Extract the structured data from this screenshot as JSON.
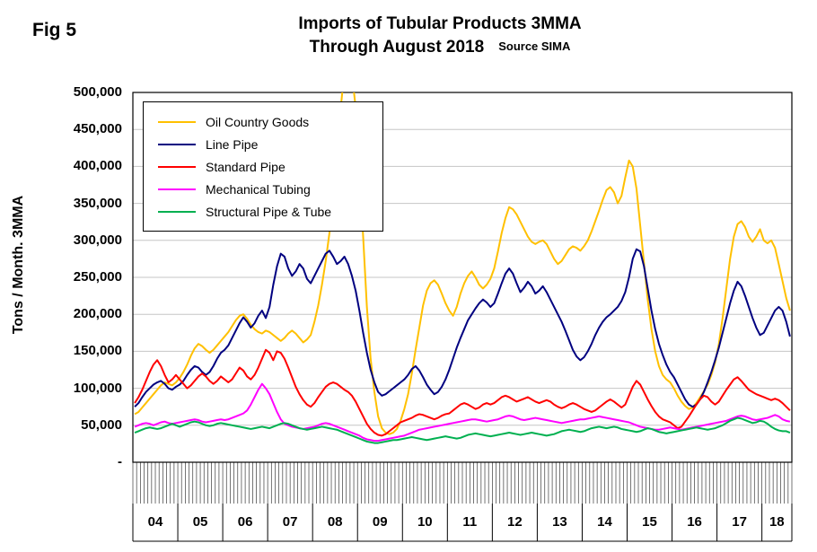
{
  "chart_data": {
    "type": "line",
    "fig_label": "Fig 5",
    "title": "Imports of Tubular Products 3MMA",
    "subtitle": "Through August 2018",
    "source": "Source SIMA",
    "ylabel": "Tons / Month. 3MMA",
    "ylim": [
      0,
      500000
    ],
    "ytick_interval": 50000,
    "ytick_labels": [
      "-",
      "50,000",
      "100,000",
      "150,000",
      "200,000",
      "250,000",
      "300,000",
      "350,000",
      "400,000",
      "450,000",
      "500,000"
    ],
    "grid": "horizontal",
    "legend_position": "top-left-inside",
    "x_years": [
      "04",
      "05",
      "06",
      "07",
      "08",
      "09",
      "10",
      "11",
      "12",
      "13",
      "14",
      "15",
      "16",
      "17",
      "18"
    ],
    "months_per_year": [
      12,
      12,
      12,
      12,
      12,
      12,
      12,
      12,
      12,
      12,
      12,
      12,
      12,
      12,
      8
    ],
    "series": [
      {
        "name": "Oil Country Goods",
        "color": "#FFC000",
        "values": [
          65000,
          68000,
          74000,
          80000,
          86000,
          92000,
          98000,
          104000,
          108000,
          106000,
          104000,
          108000,
          114000,
          122000,
          132000,
          144000,
          154000,
          160000,
          157000,
          152000,
          148000,
          152000,
          158000,
          164000,
          170000,
          176000,
          184000,
          192000,
          198000,
          200000,
          194000,
          186000,
          180000,
          176000,
          174000,
          178000,
          176000,
          172000,
          168000,
          164000,
          168000,
          174000,
          178000,
          174000,
          168000,
          162000,
          166000,
          172000,
          190000,
          212000,
          240000,
          272000,
          310000,
          356000,
          415000,
          478000,
          530000,
          545000,
          525000,
          480000,
          400000,
          305000,
          210000,
          140000,
          95000,
          62000,
          46000,
          40000,
          38000,
          40000,
          45000,
          56000,
          72000,
          92000,
          120000,
          152000,
          182000,
          212000,
          232000,
          242000,
          246000,
          240000,
          228000,
          215000,
          205000,
          198000,
          210000,
          228000,
          242000,
          252000,
          258000,
          250000,
          240000,
          235000,
          240000,
          248000,
          262000,
          285000,
          310000,
          330000,
          345000,
          342000,
          335000,
          325000,
          315000,
          305000,
          298000,
          295000,
          298000,
          300000,
          295000,
          285000,
          275000,
          268000,
          272000,
          280000,
          288000,
          292000,
          290000,
          286000,
          292000,
          300000,
          312000,
          326000,
          340000,
          355000,
          368000,
          372000,
          365000,
          350000,
          360000,
          385000,
          408000,
          400000,
          370000,
          320000,
          270000,
          220000,
          180000,
          150000,
          130000,
          118000,
          112000,
          108000,
          100000,
          90000,
          82000,
          76000,
          72000,
          74000,
          80000,
          88000,
          96000,
          105000,
          118000,
          135000,
          160000,
          195000,
          235000,
          275000,
          305000,
          322000,
          326000,
          318000,
          305000,
          298000,
          305000,
          315000,
          300000,
          296000,
          300000,
          290000,
          268000,
          245000,
          222000,
          205000
        ]
      },
      {
        "name": "Line Pipe",
        "color": "#000080",
        "values": [
          75000,
          80000,
          88000,
          95000,
          100000,
          105000,
          108000,
          110000,
          106000,
          100000,
          98000,
          102000,
          105000,
          110000,
          118000,
          125000,
          130000,
          128000,
          122000,
          118000,
          122000,
          130000,
          140000,
          148000,
          152000,
          158000,
          168000,
          178000,
          188000,
          196000,
          190000,
          182000,
          188000,
          198000,
          205000,
          195000,
          210000,
          240000,
          265000,
          282000,
          278000,
          262000,
          252000,
          258000,
          268000,
          262000,
          248000,
          242000,
          252000,
          262000,
          272000,
          282000,
          286000,
          278000,
          268000,
          272000,
          278000,
          268000,
          252000,
          232000,
          205000,
          175000,
          148000,
          125000,
          108000,
          95000,
          90000,
          92000,
          96000,
          100000,
          104000,
          108000,
          112000,
          118000,
          126000,
          130000,
          124000,
          115000,
          105000,
          98000,
          92000,
          95000,
          102000,
          112000,
          125000,
          140000,
          155000,
          168000,
          180000,
          192000,
          200000,
          208000,
          215000,
          220000,
          216000,
          210000,
          215000,
          228000,
          242000,
          255000,
          262000,
          255000,
          242000,
          230000,
          236000,
          244000,
          238000,
          228000,
          232000,
          238000,
          230000,
          220000,
          210000,
          200000,
          190000,
          178000,
          165000,
          152000,
          143000,
          138000,
          142000,
          150000,
          160000,
          172000,
          182000,
          190000,
          196000,
          200000,
          205000,
          210000,
          218000,
          230000,
          250000,
          275000,
          288000,
          285000,
          265000,
          235000,
          205000,
          180000,
          160000,
          145000,
          132000,
          122000,
          115000,
          105000,
          95000,
          85000,
          78000,
          75000,
          78000,
          85000,
          95000,
          108000,
          122000,
          138000,
          155000,
          175000,
          195000,
          215000,
          232000,
          244000,
          238000,
          225000,
          210000,
          195000,
          182000,
          172000,
          175000,
          185000,
          195000,
          205000,
          210000,
          205000,
          190000,
          170000
        ]
      },
      {
        "name": "Standard Pipe",
        "color": "#FF0000",
        "values": [
          80000,
          88000,
          98000,
          110000,
          122000,
          132000,
          138000,
          130000,
          118000,
          108000,
          112000,
          118000,
          112000,
          106000,
          100000,
          104000,
          110000,
          116000,
          120000,
          116000,
          110000,
          106000,
          110000,
          116000,
          112000,
          108000,
          112000,
          120000,
          128000,
          124000,
          116000,
          112000,
          118000,
          128000,
          140000,
          152000,
          148000,
          138000,
          150000,
          148000,
          140000,
          128000,
          115000,
          102000,
          92000,
          84000,
          78000,
          75000,
          80000,
          88000,
          95000,
          102000,
          106000,
          108000,
          106000,
          102000,
          98000,
          95000,
          90000,
          82000,
          72000,
          62000,
          52000,
          45000,
          40000,
          37000,
          36000,
          38000,
          42000,
          46000,
          50000,
          54000,
          56000,
          58000,
          60000,
          63000,
          65000,
          64000,
          62000,
          60000,
          58000,
          60000,
          63000,
          65000,
          66000,
          70000,
          74000,
          78000,
          80000,
          78000,
          75000,
          72000,
          74000,
          78000,
          80000,
          78000,
          80000,
          84000,
          88000,
          90000,
          88000,
          85000,
          82000,
          84000,
          86000,
          88000,
          85000,
          82000,
          80000,
          82000,
          84000,
          82000,
          78000,
          75000,
          73000,
          75000,
          78000,
          80000,
          78000,
          75000,
          72000,
          70000,
          68000,
          70000,
          74000,
          78000,
          82000,
          85000,
          82000,
          78000,
          74000,
          78000,
          90000,
          102000,
          110000,
          105000,
          95000,
          85000,
          76000,
          68000,
          62000,
          58000,
          56000,
          54000,
          50000,
          46000,
          48000,
          55000,
          62000,
          70000,
          78000,
          85000,
          90000,
          88000,
          82000,
          78000,
          82000,
          90000,
          98000,
          105000,
          112000,
          115000,
          110000,
          104000,
          98000,
          95000,
          92000,
          90000,
          88000,
          86000,
          84000,
          86000,
          84000,
          80000,
          75000,
          70000
        ]
      },
      {
        "name": "Mechanical Tubing",
        "color": "#FF00FF",
        "values": [
          48000,
          50000,
          52000,
          53000,
          52000,
          50000,
          52000,
          54000,
          55000,
          53000,
          52000,
          53000,
          54000,
          55000,
          56000,
          57000,
          58000,
          57000,
          55000,
          54000,
          55000,
          56000,
          57000,
          58000,
          57000,
          58000,
          60000,
          62000,
          64000,
          66000,
          70000,
          78000,
          88000,
          98000,
          106000,
          100000,
          92000,
          80000,
          68000,
          58000,
          52000,
          50000,
          48000,
          47000,
          46000,
          45000,
          46000,
          47000,
          48000,
          50000,
          52000,
          53000,
          52000,
          50000,
          48000,
          46000,
          44000,
          42000,
          40000,
          38000,
          36000,
          33000,
          31000,
          30000,
          29000,
          29000,
          30000,
          31000,
          32000,
          33000,
          34000,
          35000,
          36000,
          38000,
          40000,
          42000,
          44000,
          45000,
          46000,
          47000,
          48000,
          49000,
          50000,
          51000,
          52000,
          53000,
          54000,
          55000,
          56000,
          57000,
          58000,
          58000,
          57000,
          56000,
          55000,
          56000,
          57000,
          58000,
          60000,
          62000,
          63000,
          62000,
          60000,
          58000,
          57000,
          58000,
          59000,
          60000,
          59000,
          58000,
          57000,
          56000,
          55000,
          54000,
          53000,
          54000,
          55000,
          56000,
          57000,
          58000,
          58000,
          59000,
          60000,
          61000,
          62000,
          61000,
          60000,
          59000,
          58000,
          57000,
          56000,
          55000,
          54000,
          52000,
          50000,
          48000,
          47000,
          46000,
          45000,
          44000,
          44000,
          45000,
          46000,
          47000,
          46000,
          45000,
          44000,
          45000,
          46000,
          47000,
          48000,
          49000,
          50000,
          51000,
          52000,
          53000,
          54000,
          55000,
          56000,
          58000,
          60000,
          62000,
          63000,
          62000,
          60000,
          58000,
          57000,
          58000,
          59000,
          60000,
          62000,
          64000,
          62000,
          58000,
          56000,
          55000
        ]
      },
      {
        "name": "Structural Pipe & Tube",
        "color": "#00B050",
        "values": [
          40000,
          42000,
          44000,
          46000,
          47000,
          46000,
          45000,
          46000,
          48000,
          50000,
          52000,
          50000,
          48000,
          50000,
          52000,
          54000,
          55000,
          54000,
          52000,
          50000,
          49000,
          50000,
          52000,
          53000,
          52000,
          51000,
          50000,
          49000,
          48000,
          47000,
          46000,
          45000,
          46000,
          47000,
          48000,
          47000,
          46000,
          48000,
          50000,
          52000,
          53000,
          52000,
          50000,
          48000,
          46000,
          45000,
          44000,
          45000,
          46000,
          47000,
          48000,
          47000,
          46000,
          45000,
          44000,
          42000,
          40000,
          38000,
          36000,
          34000,
          32000,
          30000,
          28000,
          27000,
          26000,
          26000,
          27000,
          28000,
          29000,
          30000,
          30000,
          31000,
          32000,
          33000,
          34000,
          33000,
          32000,
          31000,
          30000,
          31000,
          32000,
          33000,
          34000,
          35000,
          34000,
          33000,
          32000,
          33000,
          35000,
          37000,
          38000,
          39000,
          38000,
          37000,
          36000,
          35000,
          36000,
          37000,
          38000,
          39000,
          40000,
          39000,
          38000,
          37000,
          38000,
          39000,
          40000,
          39000,
          38000,
          37000,
          36000,
          37000,
          38000,
          40000,
          42000,
          43000,
          44000,
          43000,
          42000,
          41000,
          42000,
          44000,
          46000,
          47000,
          48000,
          47000,
          46000,
          47000,
          48000,
          47000,
          45000,
          44000,
          43000,
          42000,
          41000,
          42000,
          44000,
          46000,
          45000,
          43000,
          41000,
          40000,
          39000,
          40000,
          41000,
          42000,
          43000,
          44000,
          45000,
          46000,
          47000,
          46000,
          45000,
          44000,
          45000,
          46000,
          48000,
          50000,
          53000,
          56000,
          58000,
          60000,
          59000,
          57000,
          55000,
          53000,
          54000,
          56000,
          55000,
          52000,
          48000,
          45000,
          43000,
          42000,
          42000,
          40000
        ]
      }
    ]
  }
}
